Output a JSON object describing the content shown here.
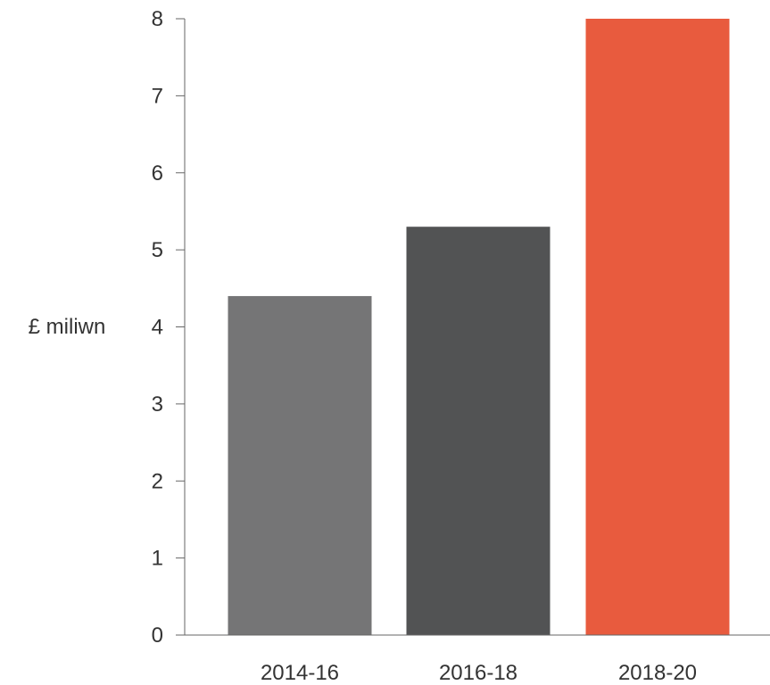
{
  "chart_data": {
    "type": "bar",
    "title": "",
    "xlabel": "",
    "ylabel": "£ miliwn",
    "categories": [
      "2014-16",
      "2016-18",
      "2018-20"
    ],
    "values": [
      4.4,
      5.3,
      8.0
    ],
    "bar_colors": [
      "#757576",
      "#525354",
      "#E85B3E"
    ],
    "ylim": [
      0,
      8
    ],
    "yticks": [
      0,
      1,
      2,
      3,
      4,
      5,
      6,
      7,
      8
    ],
    "grid": false,
    "legend": "none"
  }
}
